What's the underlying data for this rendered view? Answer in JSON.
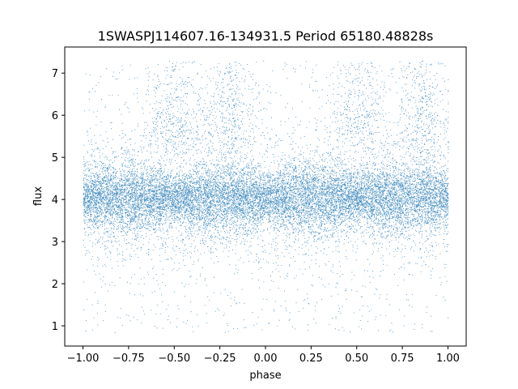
{
  "chart_data": {
    "type": "scatter",
    "title": "1SWASPJ114607.16-134931.5 Period 65180.48828s",
    "xlabel": "phase",
    "ylabel": "flux",
    "xlim": [
      -1.1,
      1.1
    ],
    "ylim": [
      0.52,
      7.62
    ],
    "xticks": [
      -1.0,
      -0.75,
      -0.5,
      -0.25,
      0.0,
      0.25,
      0.5,
      0.75,
      1.0
    ],
    "xtick_labels": [
      "−1.00",
      "−0.75",
      "−0.50",
      "−0.25",
      "0.00",
      "0.25",
      "0.50",
      "0.75",
      "1.00"
    ],
    "yticks": [
      1,
      2,
      3,
      4,
      5,
      6,
      7
    ],
    "ytick_labels": [
      "1",
      "2",
      "3",
      "4",
      "5",
      "6",
      "7"
    ],
    "grid": false,
    "point_color": "#1f77b4",
    "x_range_of_points": [
      -1.0,
      1.0
    ],
    "flux_median": 4.05,
    "core_band": [
      3.3,
      5.0
    ],
    "max_flux": 7.3,
    "min_flux": 0.85,
    "high_flux_clusters_near_phase": [
      -0.5,
      -0.2,
      0.5,
      0.85
    ]
  }
}
